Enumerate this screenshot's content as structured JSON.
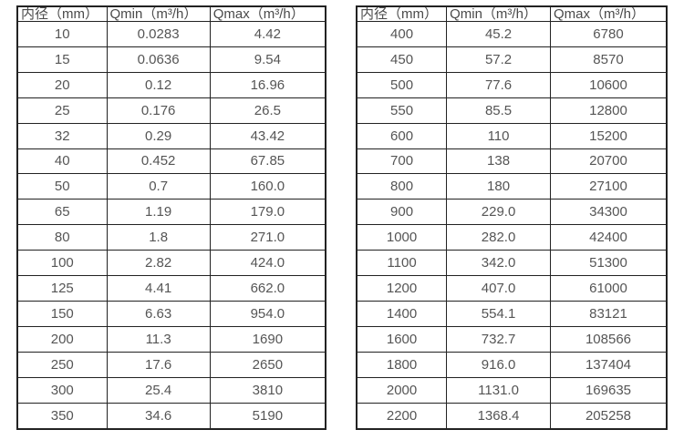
{
  "colors": {
    "border": "#222222",
    "text": "#555555",
    "background": "#ffffff"
  },
  "chart_data": [
    {
      "type": "table",
      "name": "flow-rate-table-small-diameters",
      "headers": [
        "内径（mm）",
        "Qmin（m³/h）",
        "Qmax（m³/h）"
      ],
      "rows": [
        [
          "10",
          "0.0283",
          "4.42"
        ],
        [
          "15",
          "0.0636",
          "9.54"
        ],
        [
          "20",
          "0.12",
          "16.96"
        ],
        [
          "25",
          "0.176",
          "26.5"
        ],
        [
          "32",
          "0.29",
          "43.42"
        ],
        [
          "40",
          "0.452",
          "67.85"
        ],
        [
          "50",
          "0.7",
          "160.0"
        ],
        [
          "65",
          "1.19",
          "179.0"
        ],
        [
          "80",
          "1.8",
          "271.0"
        ],
        [
          "100",
          "2.82",
          "424.0"
        ],
        [
          "125",
          "4.41",
          "662.0"
        ],
        [
          "150",
          "6.63",
          "954.0"
        ],
        [
          "200",
          "11.3",
          "1690"
        ],
        [
          "250",
          "17.6",
          "2650"
        ],
        [
          "300",
          "25.4",
          "3810"
        ],
        [
          "350",
          "34.6",
          "5190"
        ]
      ]
    },
    {
      "type": "table",
      "name": "flow-rate-table-large-diameters",
      "headers": [
        "内径（mm）",
        "Qmin（m³/h）",
        "Qmax（m³/h）"
      ],
      "rows": [
        [
          "400",
          "45.2",
          "6780"
        ],
        [
          "450",
          "57.2",
          "8570"
        ],
        [
          "500",
          "77.6",
          "10600"
        ],
        [
          "550",
          "85.5",
          "12800"
        ],
        [
          "600",
          "110",
          "15200"
        ],
        [
          "700",
          "138",
          "20700"
        ],
        [
          "800",
          "180",
          "27100"
        ],
        [
          "900",
          "229.0",
          "34300"
        ],
        [
          "1000",
          "282.0",
          "42400"
        ],
        [
          "1100",
          "342.0",
          "51300"
        ],
        [
          "1200",
          "407.0",
          "61000"
        ],
        [
          "1400",
          "554.1",
          "83121"
        ],
        [
          "1600",
          "732.7",
          "108566"
        ],
        [
          "1800",
          "916.0",
          "137404"
        ],
        [
          "2000",
          "1131.0",
          "169635"
        ],
        [
          "2200",
          "1368.4",
          "205258"
        ]
      ]
    }
  ]
}
